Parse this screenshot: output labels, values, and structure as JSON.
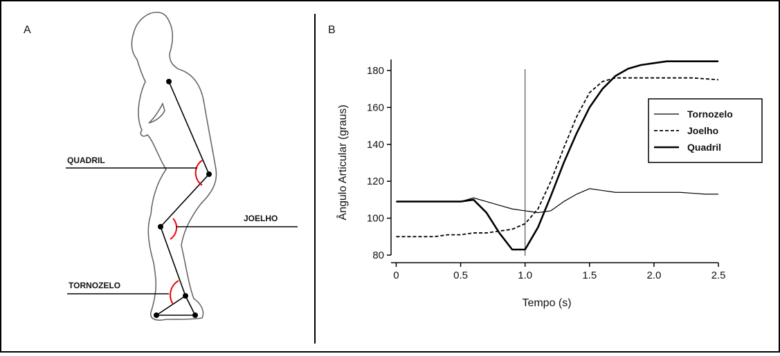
{
  "panel_a": {
    "label": "A",
    "joints": [
      "QUADRIL",
      "JOELHO",
      "TORNOZELO"
    ]
  },
  "chart_data": {
    "type": "line",
    "panel_label": "B",
    "xlabel": "Tempo (s)",
    "ylabel": "Ângulo Articular (graus)",
    "x": [
      0,
      0.1,
      0.2,
      0.3,
      0.4,
      0.5,
      0.6,
      0.7,
      0.8,
      0.9,
      1.0,
      1.1,
      1.2,
      1.3,
      1.4,
      1.5,
      1.6,
      1.7,
      1.8,
      1.9,
      2.0,
      2.1,
      2.2,
      2.3,
      2.4,
      2.5
    ],
    "series": [
      {
        "name": "Tornozelo",
        "color": "#000000",
        "style": "solid",
        "width": 1.2,
        "values": [
          109,
          109,
          109,
          109,
          109,
          109,
          111,
          109,
          107,
          105,
          104,
          103,
          104,
          109,
          113,
          116,
          115,
          114,
          114,
          114,
          114,
          114,
          114,
          113.5,
          113,
          113
        ]
      },
      {
        "name": "Joelho",
        "color": "#000000",
        "style": "dashed",
        "width": 1.8,
        "values": [
          90,
          90,
          90,
          90,
          91,
          91,
          92,
          92,
          93,
          94,
          97,
          105,
          120,
          138,
          155,
          168,
          174,
          176,
          176,
          176,
          176,
          176,
          176,
          176,
          175.5,
          175
        ]
      },
      {
        "name": "Quadril",
        "color": "#000000",
        "style": "solid",
        "width": 2.6,
        "values": [
          109,
          109,
          109,
          109,
          109,
          109,
          110,
          103,
          92,
          83,
          83,
          95,
          112,
          130,
          146,
          160,
          170,
          177,
          181,
          183,
          184,
          185,
          185,
          185,
          185,
          185
        ]
      }
    ],
    "xlim": [
      -0.04,
      2.5
    ],
    "ylim": [
      80,
      186
    ],
    "xticks": [
      0,
      0.5,
      {
        "value": 1,
        "label": "1.0"
      },
      1.5,
      {
        "value": 2,
        "label": "2.0"
      },
      2.5
    ],
    "yticks": [
      80,
      100,
      120,
      140,
      160,
      180
    ],
    "vline": 1,
    "legend": "upper right",
    "grid": false
  }
}
